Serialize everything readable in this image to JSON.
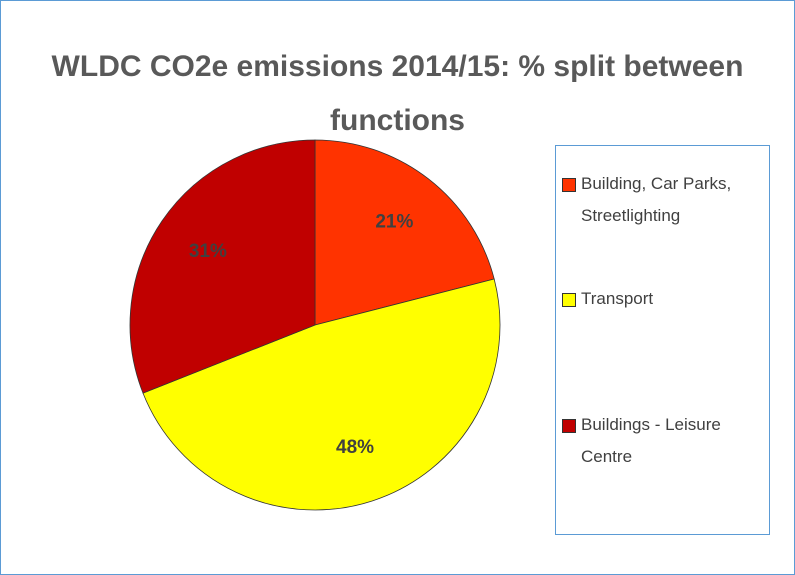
{
  "chart_data": {
    "type": "pie",
    "title": "WLDC CO2e emissions 2014/15: % split between  functions",
    "categories": [
      "Building, Car Parks, Streetlighting",
      "Transport",
      "Buildings - Leisure Centre"
    ],
    "values": [
      21,
      48,
      31
    ],
    "value_labels": [
      "21%",
      "48%",
      "31%"
    ],
    "colors": [
      "#ff3300",
      "#ffff00",
      "#c00000"
    ],
    "legend": "right"
  }
}
